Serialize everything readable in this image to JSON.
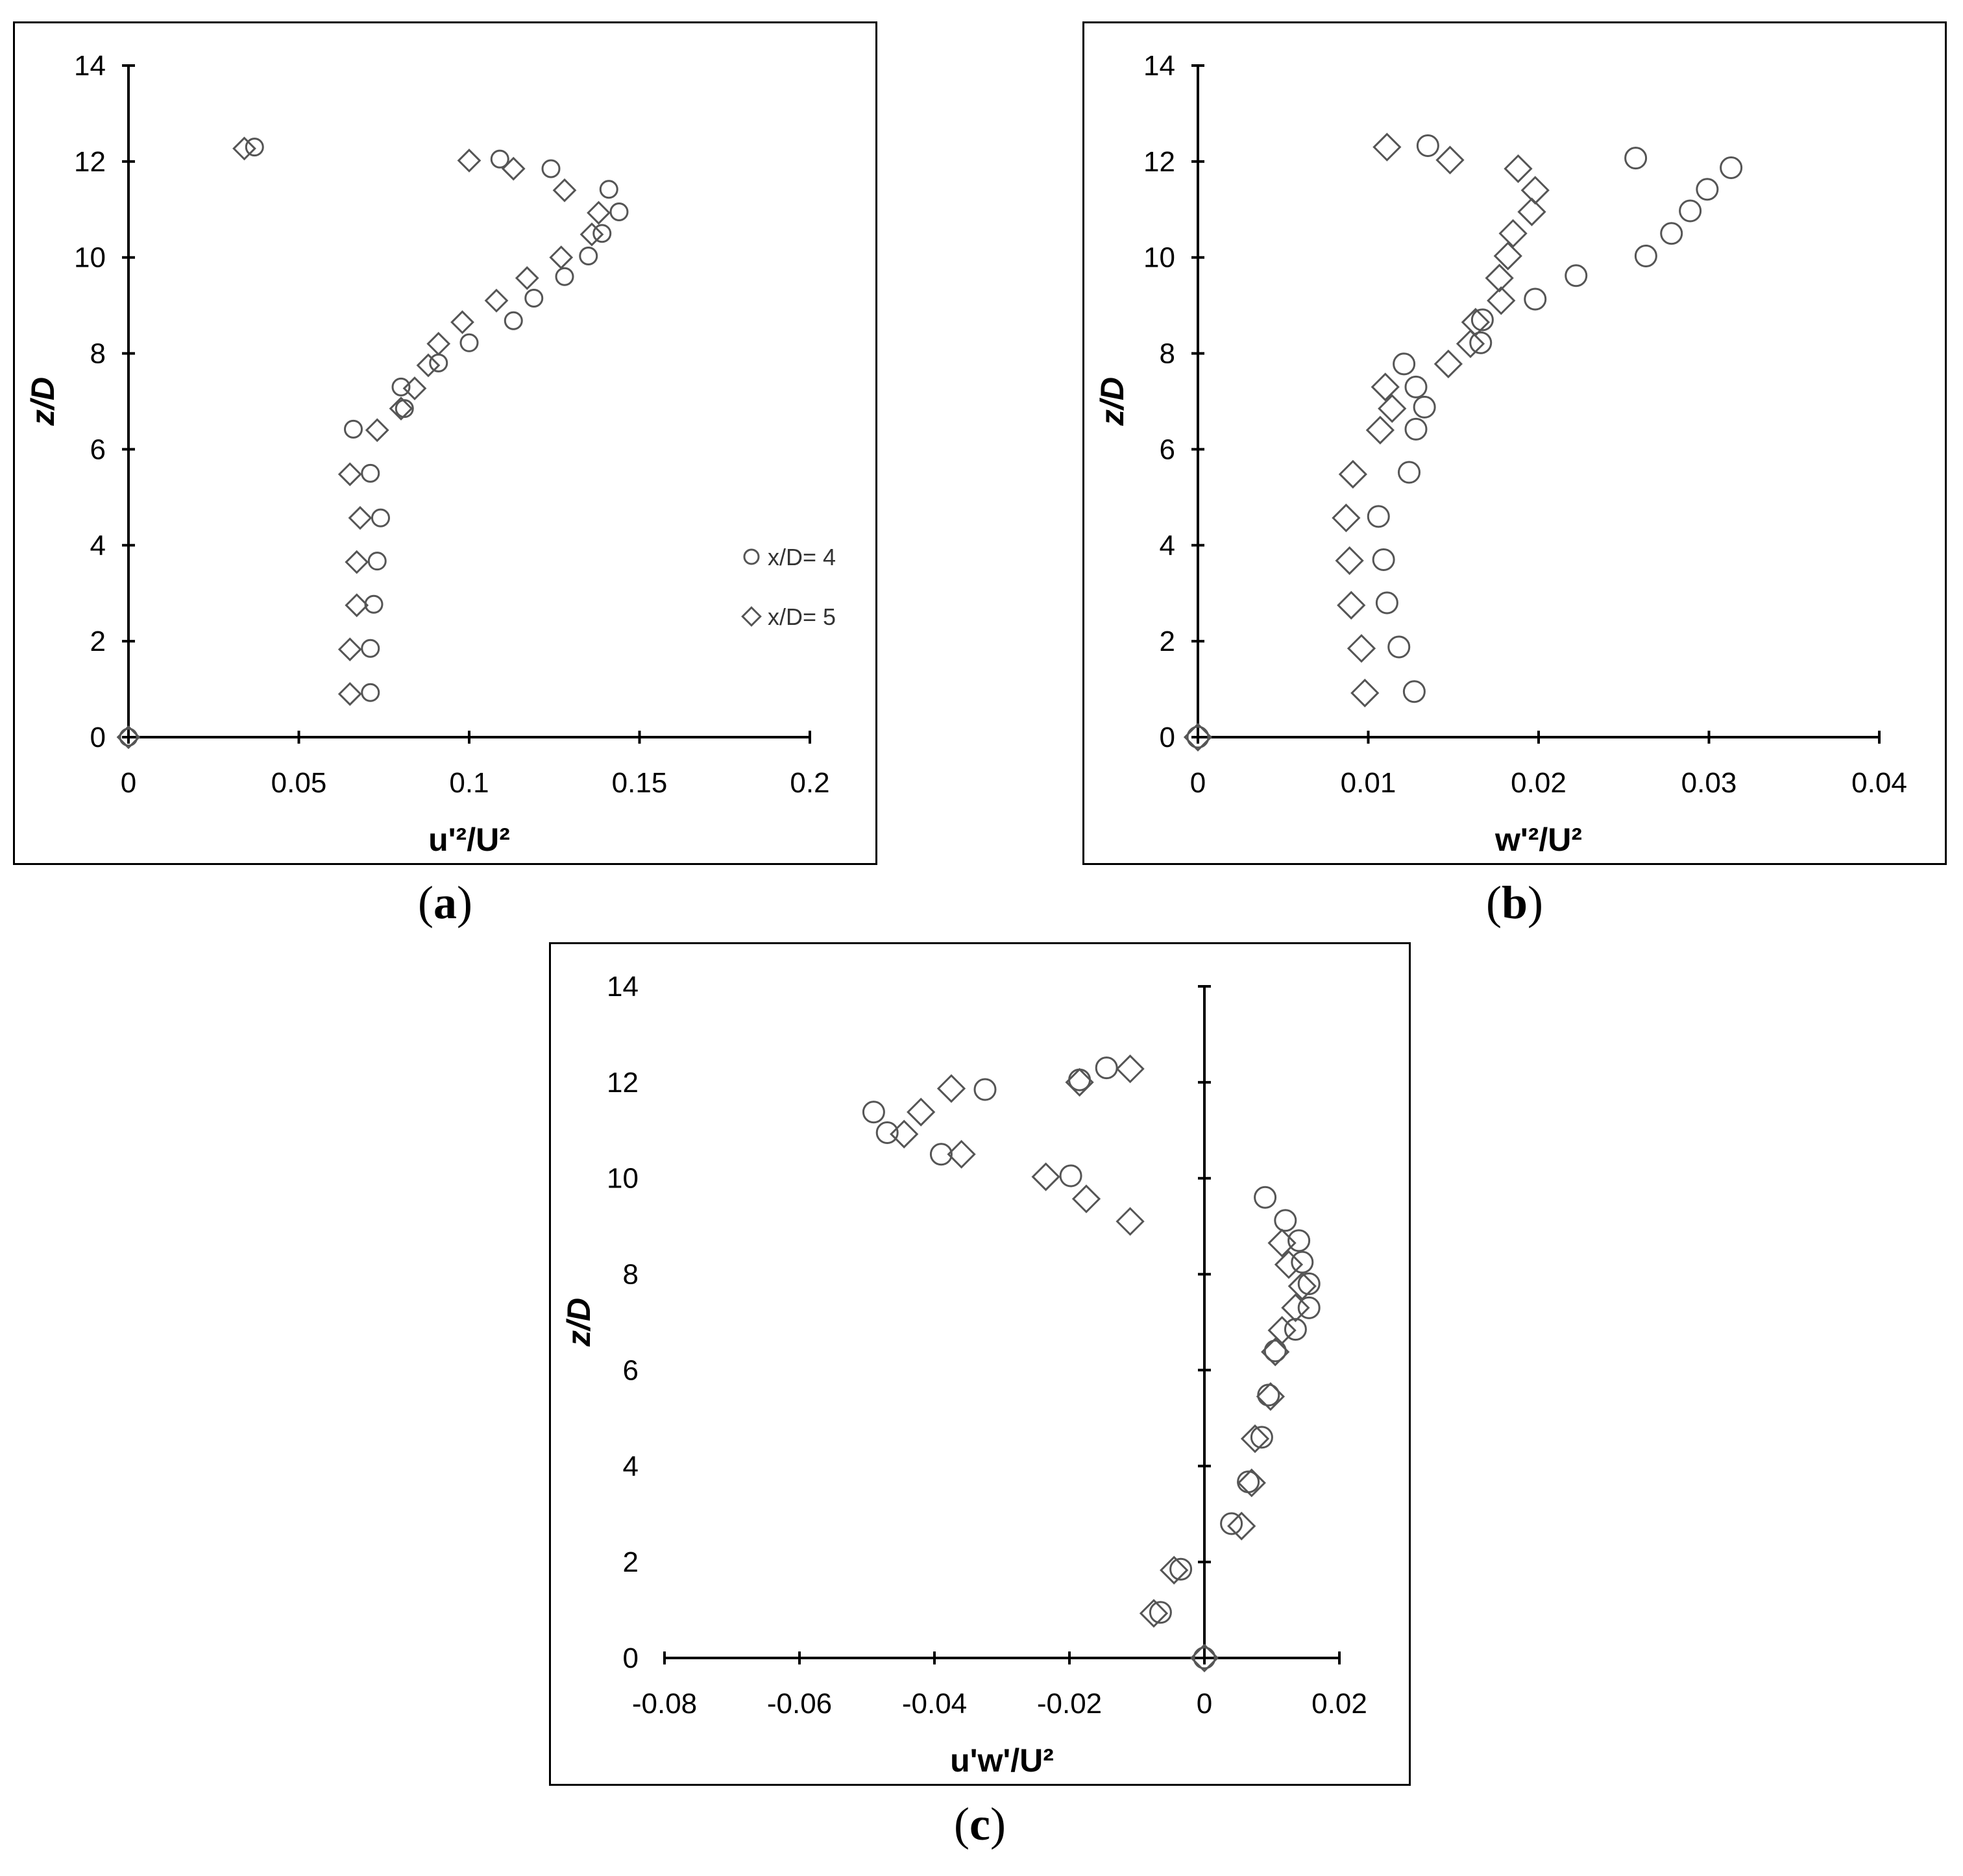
{
  "colors": {
    "axis": "#000000",
    "marker": "#555555",
    "background": "#ffffff"
  },
  "captions": [
    {
      "open": "(",
      "letter": "a",
      "close": ")"
    },
    {
      "open": "(",
      "letter": "b",
      "close": ")"
    },
    {
      "open": "(",
      "letter": "c",
      "close": ")"
    }
  ],
  "chart_data": [
    {
      "type": "scatter",
      "panel": "a",
      "xlabel": "u'²/U²",
      "ylabel": "z/D",
      "xlim": [
        0,
        0.2
      ],
      "ylim": [
        0,
        14
      ],
      "xticks": [
        "0",
        "0.05",
        "0.1",
        "0.15",
        "0.2"
      ],
      "yticks": [
        "0",
        "2",
        "4",
        "6",
        "8",
        "10",
        "12",
        "14"
      ],
      "legend": "right",
      "grid": false,
      "series": [
        {
          "name": "x/D= 4",
          "marker": "circle",
          "points": [
            [
              0,
              0
            ],
            [
              0.071,
              0.93
            ],
            [
              0.071,
              1.85
            ],
            [
              0.072,
              2.77
            ],
            [
              0.073,
              3.67
            ],
            [
              0.074,
              4.57
            ],
            [
              0.071,
              5.5
            ],
            [
              0.066,
              6.42
            ],
            [
              0.081,
              6.85
            ],
            [
              0.08,
              7.3
            ],
            [
              0.091,
              7.8
            ],
            [
              0.1,
              8.22
            ],
            [
              0.113,
              8.68
            ],
            [
              0.119,
              9.15
            ],
            [
              0.128,
              9.6
            ],
            [
              0.135,
              10.03
            ],
            [
              0.139,
              10.5
            ],
            [
              0.144,
              10.95
            ],
            [
              0.141,
              11.42
            ],
            [
              0.124,
              11.85
            ],
            [
              0.109,
              12.05
            ],
            [
              0.037,
              12.3
            ]
          ]
        },
        {
          "name": "x/D= 5",
          "marker": "diamond",
          "points": [
            [
              0,
              0
            ],
            [
              0.065,
              0.9
            ],
            [
              0.065,
              1.83
            ],
            [
              0.067,
              2.75
            ],
            [
              0.067,
              3.65
            ],
            [
              0.068,
              4.57
            ],
            [
              0.065,
              5.48
            ],
            [
              0.073,
              6.4
            ],
            [
              0.08,
              6.85
            ],
            [
              0.084,
              7.27
            ],
            [
              0.088,
              7.75
            ],
            [
              0.091,
              8.2
            ],
            [
              0.098,
              8.65
            ],
            [
              0.108,
              9.1
            ],
            [
              0.117,
              9.57
            ],
            [
              0.127,
              10.0
            ],
            [
              0.136,
              10.48
            ],
            [
              0.138,
              10.93
            ],
            [
              0.128,
              11.4
            ],
            [
              0.113,
              11.85
            ],
            [
              0.1,
              12.02
            ],
            [
              0.034,
              12.27
            ]
          ]
        }
      ]
    },
    {
      "type": "scatter",
      "panel": "b",
      "xlabel": "w'²/U²",
      "ylabel": "z/D",
      "xlim": [
        0,
        0.04
      ],
      "ylim": [
        0,
        14
      ],
      "xticks": [
        "0",
        "0.01",
        "0.02",
        "0.03",
        "0.04"
      ],
      "yticks": [
        "0",
        "2",
        "4",
        "6",
        "8",
        "10",
        "12",
        "14"
      ],
      "grid": false,
      "series": [
        {
          "name": "x/D= 4",
          "marker": "circle",
          "points": [
            [
              0,
              0
            ],
            [
              0.0127,
              0.95
            ],
            [
              0.0118,
              1.88
            ],
            [
              0.0111,
              2.8
            ],
            [
              0.0109,
              3.7
            ],
            [
              0.0106,
              4.6
            ],
            [
              0.0124,
              5.52
            ],
            [
              0.0128,
              6.42
            ],
            [
              0.0133,
              6.88
            ],
            [
              0.0128,
              7.3
            ],
            [
              0.0121,
              7.78
            ],
            [
              0.0166,
              8.22
            ],
            [
              0.0167,
              8.7
            ],
            [
              0.0198,
              9.13
            ],
            [
              0.0222,
              9.62
            ],
            [
              0.0263,
              10.03
            ],
            [
              0.0278,
              10.5
            ],
            [
              0.0289,
              10.97
            ],
            [
              0.0299,
              11.42
            ],
            [
              0.0313,
              11.87
            ],
            [
              0.0257,
              12.07
            ],
            [
              0.0135,
              12.33
            ]
          ]
        },
        {
          "name": "x/D= 5",
          "marker": "diamond",
          "points": [
            [
              0,
              0
            ],
            [
              0.0098,
              0.92
            ],
            [
              0.0096,
              1.85
            ],
            [
              0.009,
              2.75
            ],
            [
              0.0089,
              3.68
            ],
            [
              0.0087,
              4.57
            ],
            [
              0.0091,
              5.48
            ],
            [
              0.0107,
              6.4
            ],
            [
              0.0114,
              6.85
            ],
            [
              0.011,
              7.3
            ],
            [
              0.0147,
              7.78
            ],
            [
              0.016,
              8.2
            ],
            [
              0.0163,
              8.65
            ],
            [
              0.0178,
              9.1
            ],
            [
              0.0177,
              9.57
            ],
            [
              0.0182,
              10.03
            ],
            [
              0.0185,
              10.5
            ],
            [
              0.0196,
              10.95
            ],
            [
              0.0198,
              11.4
            ],
            [
              0.0188,
              11.85
            ],
            [
              0.0148,
              12.03
            ],
            [
              0.0111,
              12.3
            ]
          ]
        }
      ]
    },
    {
      "type": "scatter",
      "panel": "c",
      "xlabel": "u'w'/U²",
      "ylabel": "z/D",
      "xlim": [
        -0.08,
        0.02
      ],
      "ylim": [
        0,
        14
      ],
      "xticks": [
        "-0.08",
        "-0.06",
        "-0.04",
        "-0.02",
        "0",
        "0.02"
      ],
      "yticks": [
        "0",
        "2",
        "4",
        "6",
        "8",
        "10",
        "12",
        "14"
      ],
      "grid": false,
      "series": [
        {
          "name": "x/D= 4",
          "marker": "circle",
          "points": [
            [
              0,
              0
            ],
            [
              -0.0065,
              0.95
            ],
            [
              -0.0035,
              1.85
            ],
            [
              0.004,
              2.8
            ],
            [
              0.0065,
              3.67
            ],
            [
              0.0085,
              4.6
            ],
            [
              0.0095,
              5.48
            ],
            [
              0.0105,
              6.4
            ],
            [
              0.0135,
              6.85
            ],
            [
              0.0155,
              7.3
            ],
            [
              0.0155,
              7.8
            ],
            [
              0.0145,
              8.25
            ],
            [
              0.014,
              8.7
            ],
            [
              0.012,
              9.12
            ],
            [
              0.009,
              9.6
            ],
            [
              -0.0198,
              10.05
            ],
            [
              -0.039,
              10.5
            ],
            [
              -0.047,
              10.95
            ],
            [
              -0.049,
              11.38
            ],
            [
              -0.0325,
              11.85
            ],
            [
              -0.0185,
              12.05
            ],
            [
              -0.0145,
              12.3
            ]
          ]
        },
        {
          "name": "x/D= 5",
          "marker": "diamond",
          "points": [
            [
              0,
              0
            ],
            [
              -0.0075,
              0.93
            ],
            [
              -0.0045,
              1.83
            ],
            [
              0.0055,
              2.75
            ],
            [
              0.007,
              3.65
            ],
            [
              0.0075,
              4.57
            ],
            [
              0.0098,
              5.45
            ],
            [
              0.0105,
              6.38
            ],
            [
              0.0115,
              6.83
            ],
            [
              0.0135,
              7.3
            ],
            [
              0.0145,
              7.75
            ],
            [
              0.0125,
              8.2
            ],
            [
              0.0115,
              8.65
            ],
            [
              -0.011,
              9.1
            ],
            [
              -0.0175,
              9.57
            ],
            [
              -0.0235,
              10.03
            ],
            [
              -0.036,
              10.5
            ],
            [
              -0.0445,
              10.92
            ],
            [
              -0.042,
              11.38
            ],
            [
              -0.0375,
              11.87
            ],
            [
              -0.0185,
              12.0
            ],
            [
              -0.011,
              12.28
            ]
          ]
        }
      ]
    }
  ]
}
